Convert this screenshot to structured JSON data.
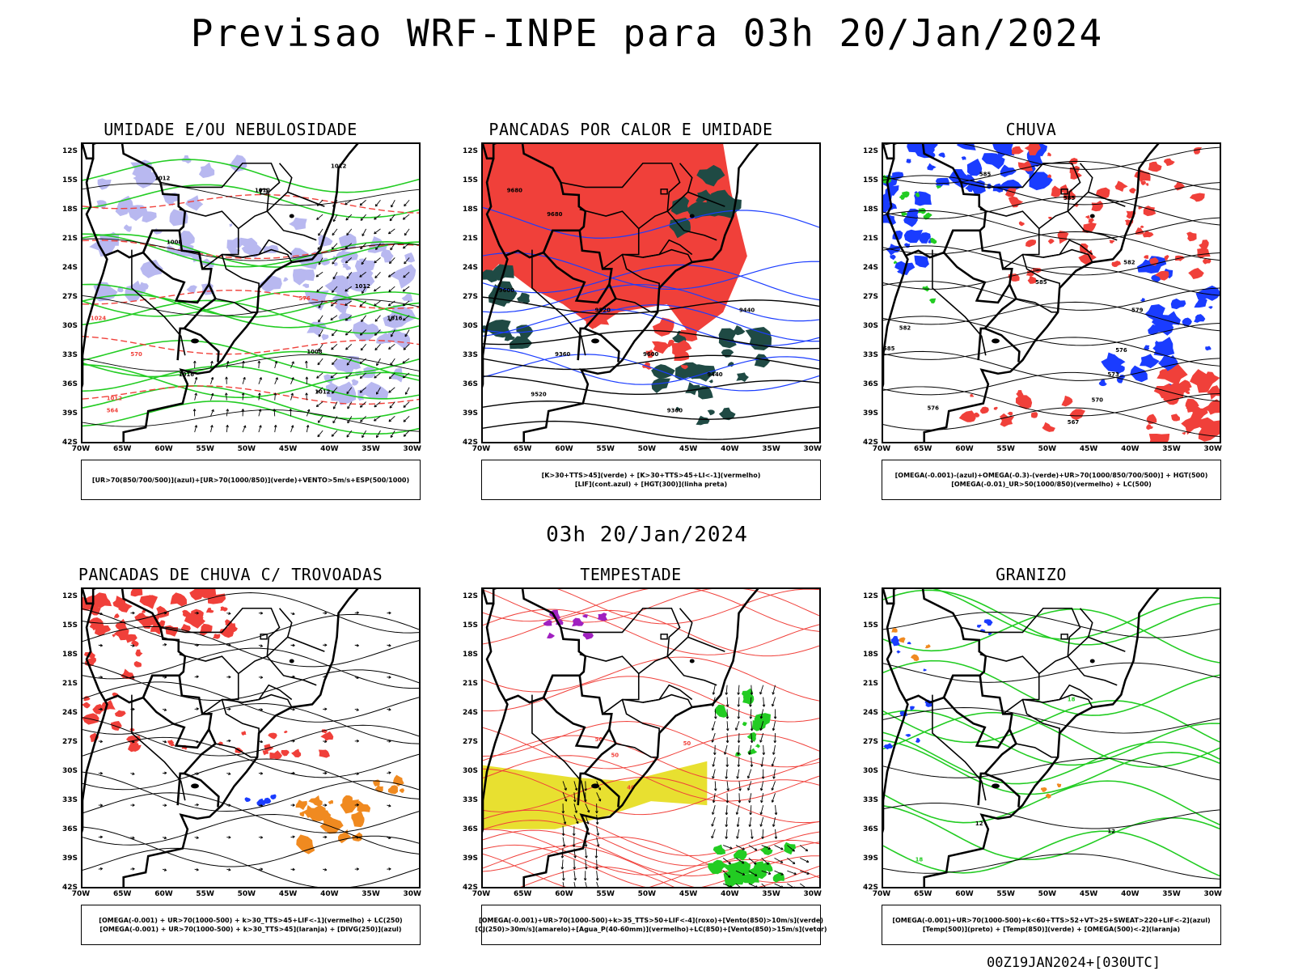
{
  "header": {
    "title": "Previsao WRF-INPE  para 03h 20/Jan/2024",
    "subtitle": "03h 20/Jan/2024",
    "footer": "00Z19JAN2024+[030UTC]"
  },
  "axes": {
    "lat_ticks": [
      "12S",
      "15S",
      "18S",
      "21S",
      "24S",
      "27S",
      "30S",
      "33S",
      "36S",
      "39S",
      "42S"
    ],
    "lon_ticks": [
      "70W",
      "65W",
      "60W",
      "55W",
      "50W",
      "45W",
      "40W",
      "35W",
      "30W"
    ]
  },
  "colors": {
    "red": "#f0403a",
    "green": "#22cc22",
    "blue": "#1a3cff",
    "lavender": "#b8b8f0",
    "darkgreen": "#1f4a44",
    "yellow": "#e8e030",
    "orange": "#f08a20",
    "purple": "#a020c0"
  },
  "chart_data": [
    {
      "type": "map",
      "title": "UMIDADE E/OU NEBULOSIDADE",
      "legend": [
        "[UR>70(850/700/500)](azul)+[UR>70(1000/850)](verde)+VENTO>5m/s+ESP(500/1000)"
      ],
      "contour_labels": [
        "1012",
        "1012",
        "1012",
        "1008",
        "1016",
        "1012",
        "1008",
        "1012",
        "1016",
        "1012",
        "576",
        "570",
        "564",
        "1024"
      ]
    },
    {
      "type": "map",
      "title": "PANCADAS POR CALOR E UMIDADE",
      "legend": [
        "[K>30+TTS>45](verde) + [K>30+TTS>45+LI<-1](vermelho)",
        "[LIF](cont.azul) + [HGT(300)](linha preta)"
      ],
      "contour_labels": [
        "9680",
        "9680",
        "9600",
        "9520",
        "9440",
        "9360",
        "9600",
        "9520",
        "9440",
        "9360"
      ]
    },
    {
      "type": "map",
      "title": "CHUVA",
      "legend": [
        "[OMEGA(-0.001)-(azul)+OMEGA(-0.3)-(verde)+UR>70(1000/850/700/500)] + HGT(500)",
        "[OMEGA(-0.01)_UR>50(1000/850)(vermelho) + LC(500)"
      ],
      "contour_labels": [
        "585",
        "585",
        "585",
        "582",
        "579",
        "576",
        "573",
        "570",
        "567",
        "576",
        "582",
        "585"
      ]
    },
    {
      "type": "map",
      "title": "PANCADAS DE CHUVA C/ TROVOADAS",
      "legend": [
        "[OMEGA(-0.001) + UR>70(1000-500) + k>30_TTS>45+LIF<-1](vermelho) + LC(250)",
        "[OMEGA(-0.001) + UR>70(1000-500) + k>30_TTS>45](laranja) + [DIVG(250)](azul)"
      ],
      "contour_labels": []
    },
    {
      "type": "map",
      "title": "TEMPESTADE",
      "legend": [
        "[OMEGA(-0.001)+UR>70(1000-500)+k>35_TTS>50+LIF<-4](roxo)+[Vento(850)>10m/s](verde)",
        "[CJ(250)>30m/s](amarelo)+[Agua_P(40-60mm)](vermelho)+LC(850)+[Vento(850)>15m/s](vetor)"
      ],
      "contour_labels": [
        "50",
        "50",
        "40",
        "50"
      ]
    },
    {
      "type": "map",
      "title": "GRANIZO",
      "legend": [
        "[OMEGA(-0.001)+UR>70(1000-500)+k<60+TTS>52+VT>25+SWEAT>220+LIF<-2](azul)",
        "[Temp(500)](preto) + [Temp(850)](verde) + [OMEGA(500)<-2](laranja)"
      ],
      "contour_labels": [
        "12",
        "12",
        "18",
        "18"
      ]
    }
  ]
}
